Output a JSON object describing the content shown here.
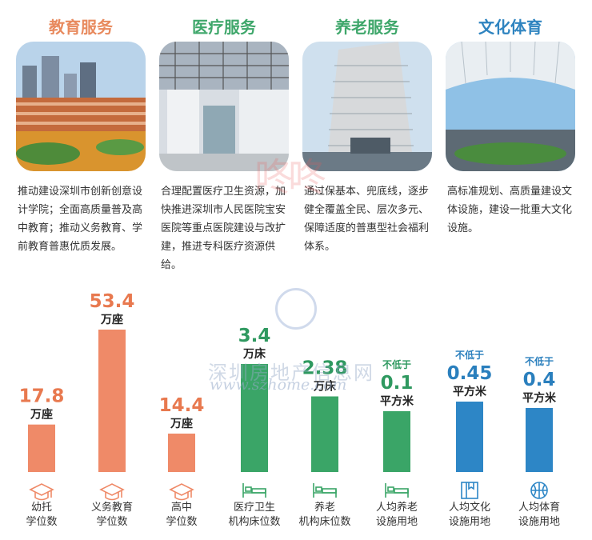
{
  "categories": [
    {
      "title": "教育服务",
      "color": "#e88a5e",
      "desc": "推动建设深圳市创新创意设计学院；全面高质量普及高中教育；推动义务教育、学前教育普惠优质发展。",
      "icon": "school-photo"
    },
    {
      "title": "医疗服务",
      "color": "#3fa76b",
      "desc": "合理配置医疗卫生资源，加快推进深圳市人民医院宝安医院等重点医院建设与改扩建，推进专科医疗资源供给。",
      "icon": "hospital-atrium-photo"
    },
    {
      "title": "养老服务",
      "color": "#3fa76b",
      "desc": "通过保基本、兜底线，逐步健全覆盖全民、层次多元、保障适度的普惠型社会福利体系。",
      "icon": "tower-photo"
    },
    {
      "title": "文化体育",
      "color": "#2f84c0",
      "desc": "高标准规划、高质量建设文体设施，建设一批重大文化设施。",
      "icon": "stadium-photo"
    }
  ],
  "watermark": {
    "line1": "深圳房地产信息网",
    "line2": "www.szhome.com",
    "seal": "咚咚"
  },
  "chart_data": {
    "type": "bar",
    "items": [
      {
        "value_label": "17.8",
        "value": 17.8,
        "unit": "万座",
        "prefix": "",
        "label": [
          "幼托",
          "学位数"
        ],
        "color": "#ef8a68",
        "label_color": "#e8794f",
        "icon": "graduation-cap-icon"
      },
      {
        "value_label": "53.4",
        "value": 53.4,
        "unit": "万座",
        "prefix": "",
        "label": [
          "义务教育",
          "学位数"
        ],
        "color": "#ef8a68",
        "label_color": "#e8794f",
        "icon": "graduation-cap-icon"
      },
      {
        "value_label": "14.4",
        "value": 14.4,
        "unit": "万座",
        "prefix": "",
        "label": [
          "高中",
          "学位数"
        ],
        "color": "#ef8a68",
        "label_color": "#e8794f",
        "icon": "graduation-cap-icon"
      },
      {
        "value_label": "3.4",
        "value": 3.4,
        "unit": "万床",
        "prefix": "",
        "label": [
          "医疗卫生",
          "机构床位数"
        ],
        "color": "#3aa567",
        "label_color": "#2f9960",
        "icon": "bed-icon"
      },
      {
        "value_label": "2.38",
        "value": 2.38,
        "unit": "万床",
        "prefix": "",
        "label": [
          "养老",
          "机构床位数"
        ],
        "color": "#3aa567",
        "label_color": "#2f9960",
        "icon": "bed-icon"
      },
      {
        "value_label": "0.1",
        "value": 0.1,
        "unit": "平方米",
        "prefix": "不低于",
        "label": [
          "人均养老",
          "设施用地"
        ],
        "color": "#3aa567",
        "label_color": "#2f9960",
        "icon": "bed-icon"
      },
      {
        "value_label": "0.45",
        "value": 0.45,
        "unit": "平方米",
        "prefix": "不低于",
        "label": [
          "人均文化",
          "设施用地"
        ],
        "color": "#2d86c6",
        "label_color": "#2a7fbd",
        "icon": "book-icon"
      },
      {
        "value_label": "0.4",
        "value": 0.4,
        "unit": "平方米",
        "prefix": "不低于",
        "label": [
          "人均体育",
          "设施用地"
        ],
        "color": "#2d86c6",
        "label_color": "#2a7fbd",
        "icon": "basketball-icon"
      }
    ]
  }
}
